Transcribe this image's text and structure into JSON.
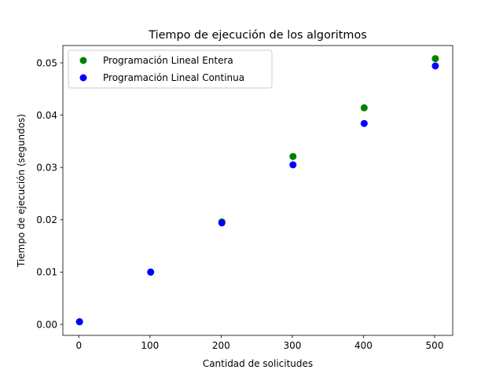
{
  "chart_data": {
    "type": "scatter",
    "title": "Tiempo de ejecución de los algoritmos",
    "xlabel": "Cantidad de solicitudes",
    "ylabel": "Tiempo de ejecución (segundos)",
    "xlim": [
      -22.4,
      525.4
    ],
    "ylim": [
      -0.0021,
      0.0533
    ],
    "xticks": [
      0,
      100,
      200,
      300,
      400,
      500
    ],
    "xtick_labels": [
      "0",
      "100",
      "200",
      "300",
      "400",
      "500"
    ],
    "yticks": [
      0.0,
      0.01,
      0.02,
      0.03,
      0.04,
      0.05
    ],
    "ytick_labels": [
      "0.00",
      "0.01",
      "0.02",
      "0.03",
      "0.04",
      "0.05"
    ],
    "grid": false,
    "legend_position": "top-left",
    "x": [
      1,
      101,
      201,
      301,
      401,
      501
    ],
    "series": [
      {
        "name": "Programación Lineal Entera",
        "color": "#008000",
        "values": [
          0.0005,
          0.01,
          0.0196,
          0.0321,
          0.0414,
          0.0508
        ]
      },
      {
        "name": "Programación Lineal Continua",
        "color": "#0000ff",
        "values": [
          0.0005,
          0.01,
          0.0194,
          0.0305,
          0.0384,
          0.0494
        ]
      }
    ]
  }
}
